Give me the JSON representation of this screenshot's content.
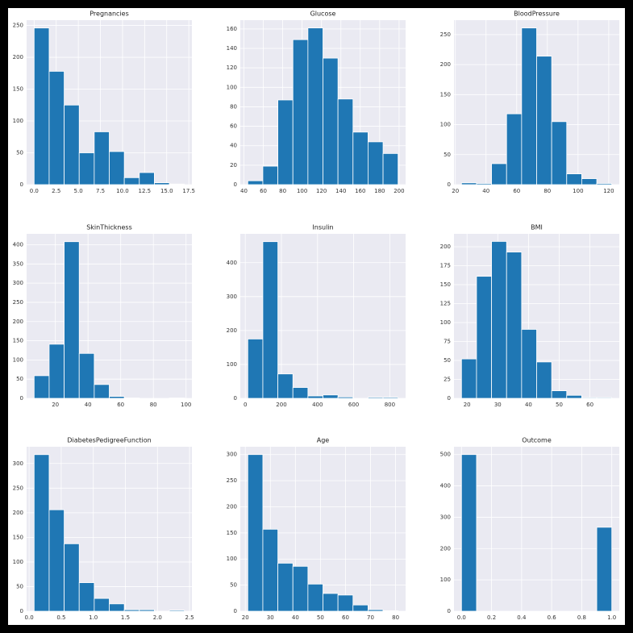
{
  "chart_data": [
    {
      "type": "histogram",
      "title": "Pregnancies",
      "bins": [
        0,
        1.7,
        3.4,
        5.1,
        6.8,
        8.5,
        10.2,
        11.9,
        13.6,
        15.3,
        17
      ],
      "values": [
        246,
        178,
        125,
        50,
        83,
        52,
        11,
        19,
        3,
        1
      ],
      "color": "#1f77b4",
      "xlim": [
        -0.85,
        17.85
      ],
      "ylim": [
        0,
        258.3
      ],
      "xticks": [
        {
          "value": 0,
          "label": "0.0"
        },
        2.5,
        {
          "value": 5,
          "label": "5.0"
        },
        7.5,
        {
          "value": 10,
          "label": "10.0"
        },
        12.5,
        {
          "value": 15,
          "label": "15.0"
        },
        17.5
      ],
      "yticks": [
        0,
        50,
        100,
        150,
        200,
        250
      ],
      "grid": true
    },
    {
      "type": "histogram",
      "title": "Glucose",
      "bins": [
        44,
        59.5,
        75,
        90.5,
        106,
        121.5,
        137,
        152.5,
        168,
        183.5,
        199
      ],
      "values": [
        4,
        19,
        87,
        149,
        161,
        130,
        88,
        54,
        44,
        32
      ],
      "color": "#1f77b4",
      "xlim": [
        36.25,
        206.75
      ],
      "ylim": [
        0,
        169
      ],
      "xticks": [
        40,
        60,
        80,
        100,
        120,
        140,
        160,
        180,
        200
      ],
      "yticks": [
        0,
        20,
        40,
        60,
        80,
        100,
        120,
        140,
        160
      ],
      "grid": true
    },
    {
      "type": "histogram",
      "title": "BloodPressure",
      "bins": [
        24,
        33.8,
        43.6,
        53.4,
        63.2,
        73,
        82.8,
        92.6,
        102.4,
        112.2,
        122
      ],
      "values": [
        3,
        2,
        35,
        118,
        261,
        214,
        105,
        18,
        10,
        2
      ],
      "color": "#1f77b4",
      "xlim": [
        19.1,
        126.9
      ],
      "ylim": [
        0,
        274
      ],
      "xticks": [
        20,
        40,
        60,
        80,
        100,
        120
      ],
      "yticks": [
        0,
        50,
        100,
        150,
        200,
        250
      ],
      "grid": true
    },
    {
      "type": "histogram",
      "title": "SkinThickness",
      "bins": [
        7,
        16.2,
        25.4,
        34.6,
        43.8,
        53,
        62.2,
        71.4,
        80.6,
        89.8,
        99
      ],
      "values": [
        59,
        141,
        408,
        117,
        36,
        5,
        1,
        0,
        0,
        1
      ],
      "color": "#1f77b4",
      "xlim": [
        2.4,
        103.6
      ],
      "ylim": [
        0,
        428.4
      ],
      "xticks": [
        20,
        40,
        60,
        80,
        100
      ],
      "yticks": [
        0,
        50,
        100,
        150,
        200,
        250,
        300,
        350,
        400
      ],
      "grid": true
    },
    {
      "type": "histogram",
      "title": "Insulin",
      "bins": [
        14,
        97.2,
        180.4,
        263.6,
        346.8,
        430,
        513.2,
        596.4,
        679.6,
        762.8,
        846
      ],
      "values": [
        175,
        462,
        72,
        32,
        7,
        10,
        4,
        0,
        3,
        3
      ],
      "color": "#1f77b4",
      "xlim": [
        -27.6,
        887.6
      ],
      "ylim": [
        0,
        485
      ],
      "xticks": [
        0,
        200,
        400,
        600,
        800
      ],
      "yticks": [
        0,
        100,
        200,
        300,
        400
      ],
      "grid": true
    },
    {
      "type": "histogram",
      "title": "BMI",
      "bins": [
        18.2,
        23.09,
        27.98,
        32.87,
        37.76,
        42.65,
        47.54,
        52.43,
        57.32,
        62.21,
        67.1
      ],
      "values": [
        52,
        161,
        207,
        193,
        91,
        48,
        10,
        4,
        1,
        1
      ],
      "color": "#1f77b4",
      "xlim": [
        15.755,
        69.545
      ],
      "ylim": [
        0,
        217
      ],
      "xticks": [
        20,
        30,
        40,
        50,
        60
      ],
      "yticks": [
        0,
        25,
        50,
        75,
        100,
        125,
        150,
        175,
        200
      ],
      "grid": true
    },
    {
      "type": "histogram",
      "title": "DiabetesPedigreeFunction",
      "bins": [
        0.078,
        0.3122,
        0.5464,
        0.7806,
        1.0148,
        1.249,
        1.4832,
        1.7174,
        1.9516,
        2.1858,
        2.42
      ],
      "values": [
        318,
        206,
        137,
        58,
        26,
        15,
        3,
        3,
        0,
        2
      ],
      "color": "#1f77b4",
      "xlim": [
        -0.039,
        2.537
      ],
      "ylim": [
        0,
        334
      ],
      "xticks": [
        {
          "value": 0,
          "label": "0.0"
        },
        0.5,
        {
          "value": 1,
          "label": "1.0"
        },
        1.5,
        {
          "value": 2,
          "label": "2.0"
        },
        2.5
      ],
      "yticks": [
        0,
        50,
        100,
        150,
        200,
        250,
        300
      ],
      "grid": true
    },
    {
      "type": "histogram",
      "title": "Age",
      "bins": [
        21,
        27,
        33,
        39,
        45,
        51,
        57,
        63,
        69,
        75,
        81
      ],
      "values": [
        300,
        157,
        92,
        86,
        52,
        34,
        31,
        12,
        3,
        1
      ],
      "color": "#1f77b4",
      "xlim": [
        18,
        84
      ],
      "ylim": [
        0,
        315
      ],
      "xticks": [
        20,
        30,
        40,
        50,
        60,
        70,
        80
      ],
      "yticks": [
        0,
        50,
        100,
        150,
        200,
        250,
        300
      ],
      "grid": true
    },
    {
      "type": "histogram",
      "title": "Outcome",
      "bins": [
        0,
        0.1,
        0.2,
        0.3,
        0.4,
        0.5,
        0.6,
        0.7,
        0.8,
        0.9,
        1
      ],
      "values": [
        500,
        0,
        0,
        0,
        0,
        0,
        0,
        0,
        0,
        268
      ],
      "color": "#1f77b4",
      "xlim": [
        -0.05,
        1.05
      ],
      "ylim": [
        0,
        525
      ],
      "xticks": [
        {
          "value": 0,
          "label": "0.0"
        },
        0.2,
        0.4,
        0.6,
        0.8,
        {
          "value": 1,
          "label": "1.0"
        }
      ],
      "yticks": [
        0,
        100,
        200,
        300,
        400,
        500
      ],
      "grid": true
    }
  ]
}
